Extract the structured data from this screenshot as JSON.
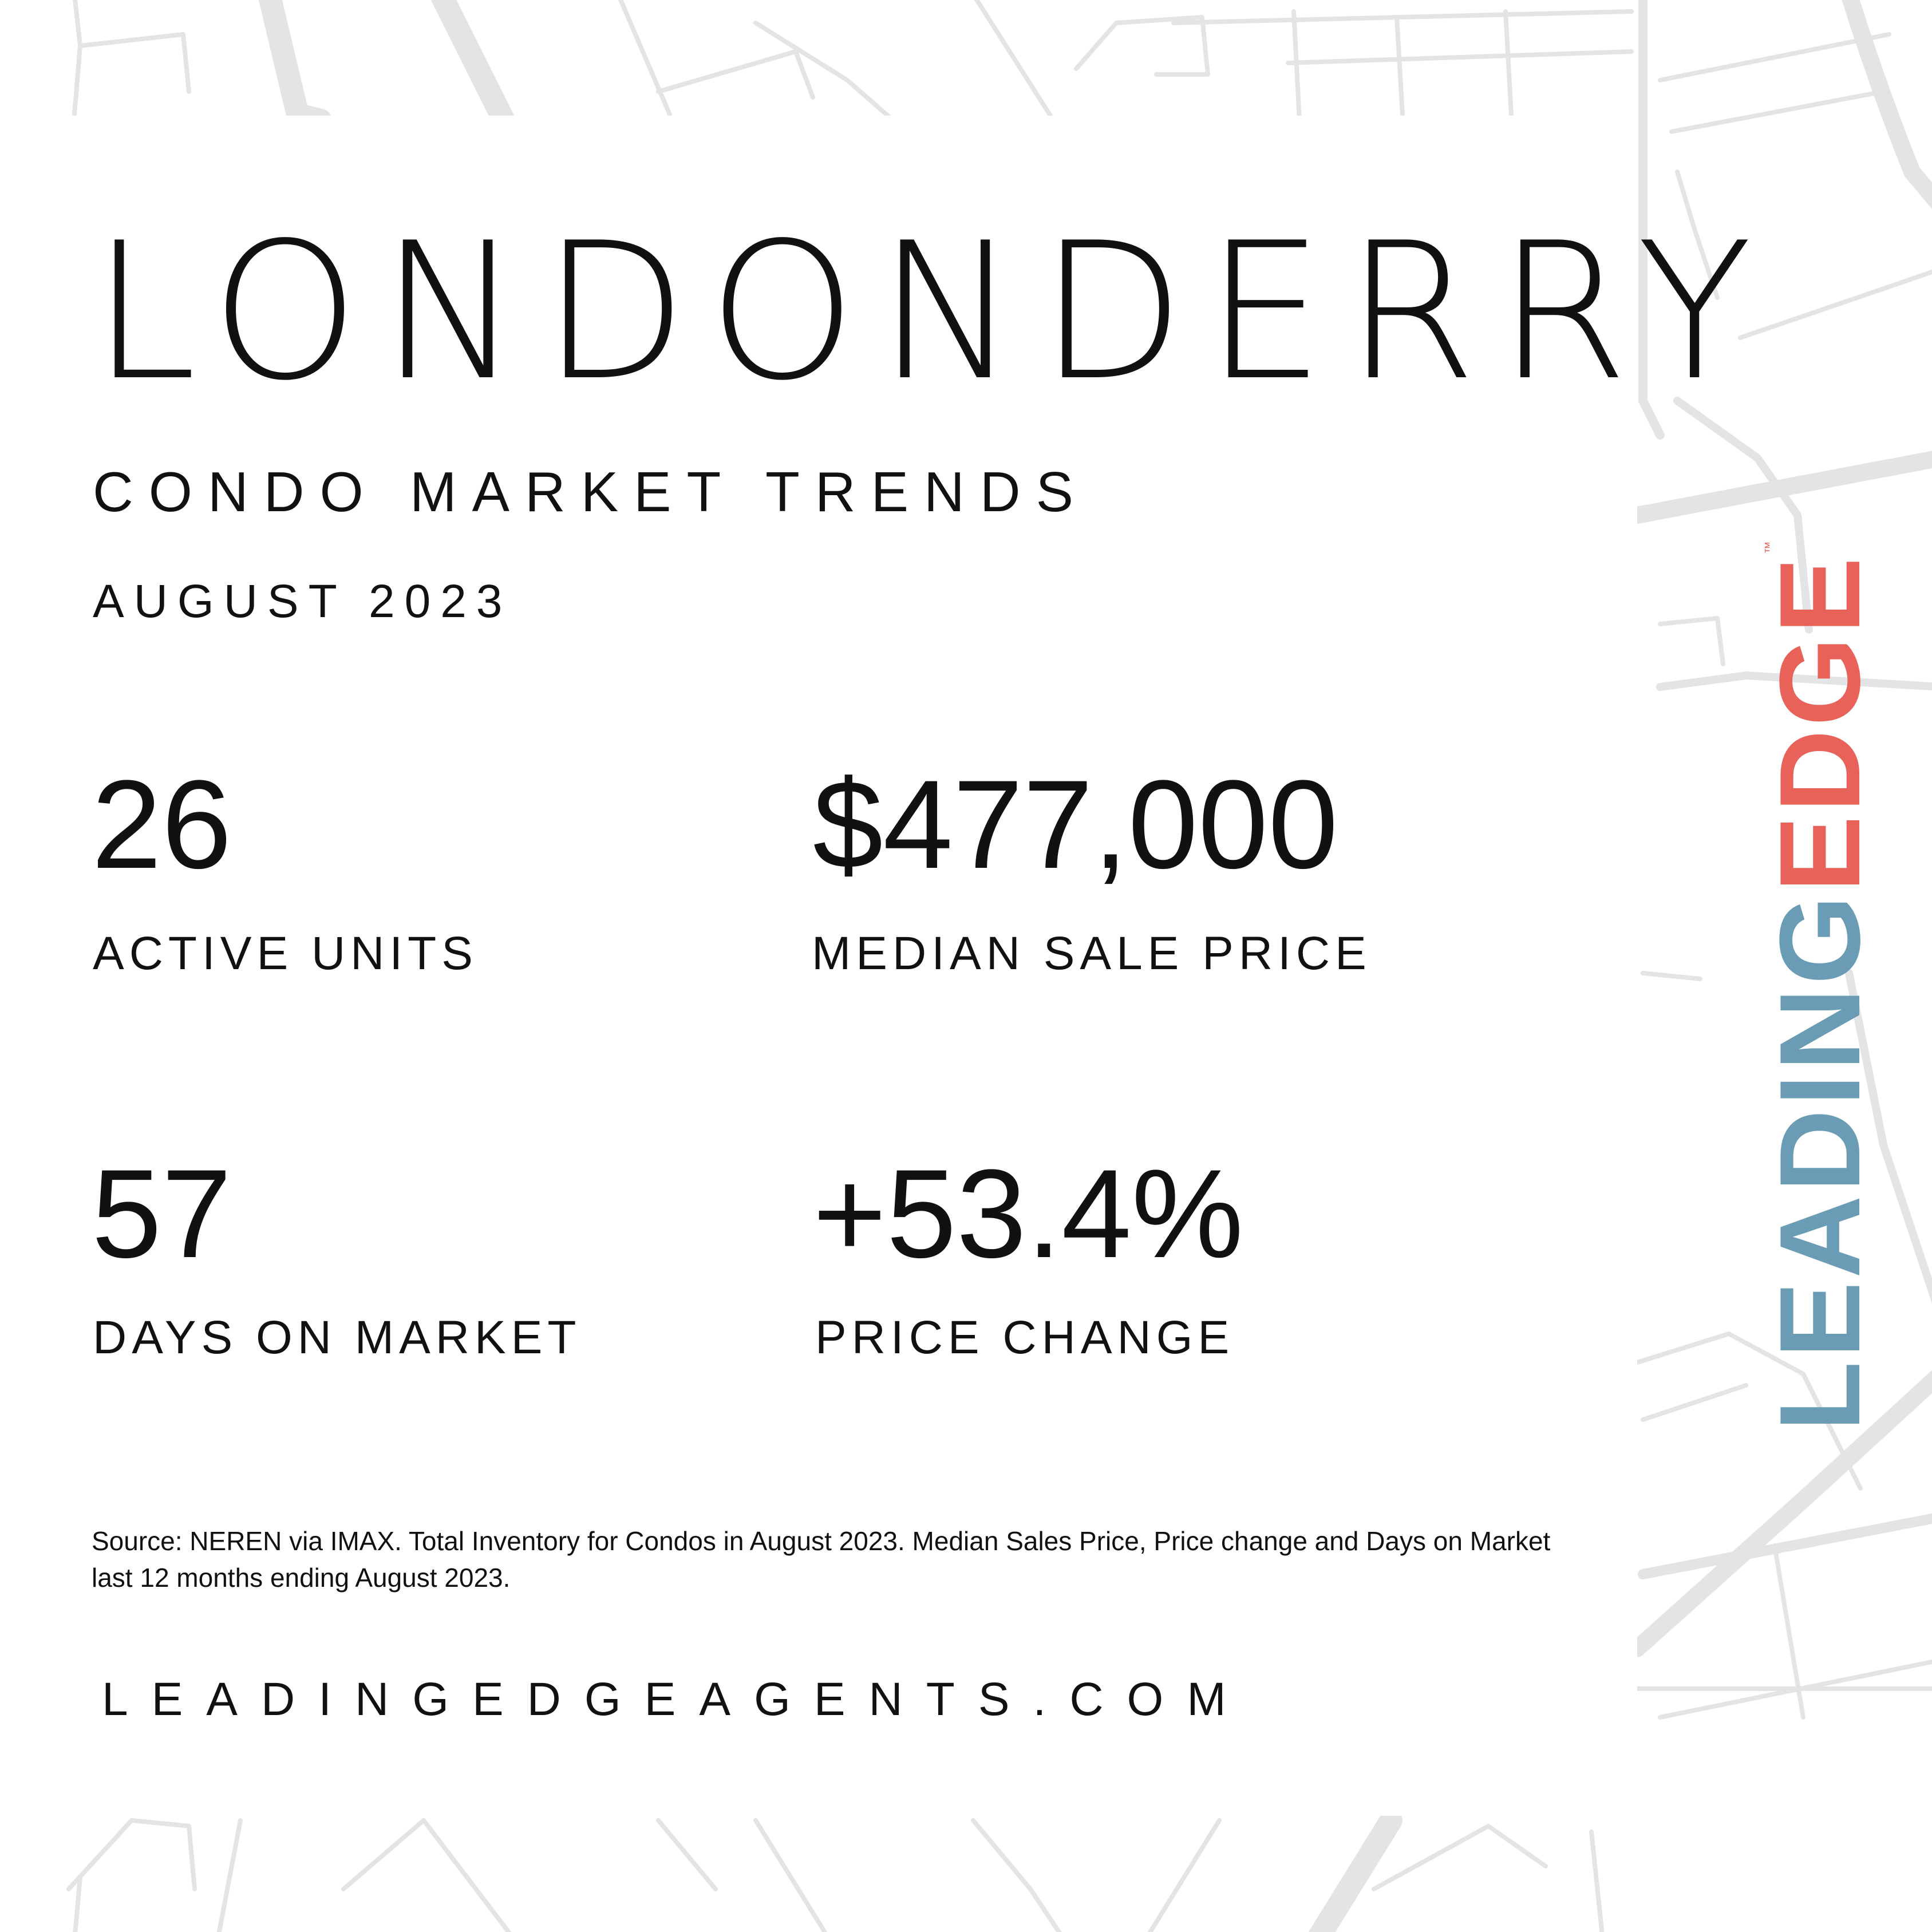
{
  "header": {
    "city": "LONDONDERRY",
    "subtitle": "CONDO MARKET TRENDS",
    "date": "AUGUST 2023"
  },
  "stats": [
    {
      "value": "26",
      "label": "ACTIVE UNITS"
    },
    {
      "value": "$477,000",
      "label": "MEDIAN SALE PRICE"
    },
    {
      "value": "57",
      "label": "DAYS ON MARKET"
    },
    {
      "value": "+53.4%",
      "label": "PRICE CHANGE"
    }
  ],
  "footer": {
    "source_note": "Source: NEREN via IMAX. Total Inventory for Condos in August 2023. Median Sales Price, Price change and Days on Market last 12 months ending August 2023.",
    "website": "LEADINGEDGEAGENTS.COM"
  },
  "brand": {
    "part1": "LEADING",
    "part2": "EDGE",
    "trademark": "™",
    "color_part1": "#6a9db5",
    "color_part2": "#e8625a"
  },
  "colors": {
    "map_lines": "#e3e4e6",
    "text": "#111111",
    "background": "#ffffff"
  }
}
